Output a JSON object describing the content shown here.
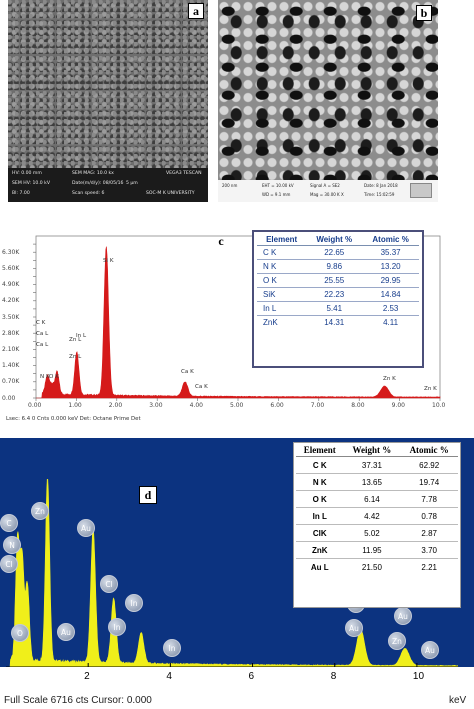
{
  "panel_a": {
    "tag": "a",
    "info": {
      "hv": "HV: 0.00 mm",
      "sem_mag": "SEM MAG: 10.0 kx",
      "vega": "VEGA3 TESCAN",
      "sem_hv": "SEM HV: 10.0 kV",
      "date": "Date(m/d/y): 08/05/16",
      "scale": "5 μm",
      "bi": "BI: 7.00",
      "scan": "Scan speed: 6",
      "uni": "SOC-M K UNIVERSITY"
    }
  },
  "panel_b": {
    "tag": "b",
    "info": {
      "scale": "200 nm",
      "eht": "EHT = 10.00 kV",
      "wd": "WD = 9.1 mm",
      "signal": "Signal A = SE2",
      "mag": "Mag = 30.00 K X",
      "date": "Date: 8 Jan 2018",
      "time": "Time: 15:02:59"
    }
  },
  "panel_c": {
    "tag": "c",
    "footer": "Lsec: 6.4  0 Cnts  0.000 keV  Det: Octane Prime Det",
    "table": {
      "headers": [
        "Element",
        "Weight %",
        "Atomic %"
      ],
      "rows": [
        [
          "C K",
          "22.65",
          "35.37"
        ],
        [
          "N K",
          "9.86",
          "13.20"
        ],
        [
          "O K",
          "25.55",
          "29.95"
        ],
        [
          "SiK",
          "22.23",
          "14.84"
        ],
        [
          "In L",
          "5.41",
          "2.53"
        ],
        [
          "ZnK",
          "14.31",
          "4.11"
        ]
      ]
    }
  },
  "panel_d": {
    "tag": "d",
    "footer": "Full Scale 6716 cts Cursor: 0.000",
    "unit": "keV",
    "table": {
      "headers": [
        "Element",
        "Weight %",
        "Atomic %"
      ],
      "rows": [
        [
          "C K",
          "37.31",
          "62.92"
        ],
        [
          "N K",
          "13.65",
          "19.74"
        ],
        [
          "O K",
          "6.14",
          "7.78"
        ],
        [
          "In L",
          "4.42",
          "0.78"
        ],
        [
          "ClK",
          "5.02",
          "2.87"
        ],
        [
          "ZnK",
          "11.95",
          "3.70"
        ],
        [
          "Au L",
          "21.50",
          "2.21"
        ]
      ]
    }
  },
  "chart_data": [
    {
      "type": "line",
      "xlim": [
        0,
        10
      ],
      "ylim": [
        0,
        7000
      ],
      "x_ticks": [
        "0.00",
        "1.00",
        "2.00",
        "3.00",
        "4.00",
        "5.00",
        "6.00",
        "7.00",
        "8.00",
        "9.00",
        "10.0"
      ],
      "y_ticks": [
        "0.00",
        "0.35K",
        "0.70K",
        "1.05K",
        "1.40K",
        "1.75K",
        "2.10K",
        "2.45K",
        "2.80K",
        "3.15K",
        "3.50K",
        "3.85K",
        "4.20K",
        "4.55K",
        "4.90K",
        "5.25K",
        "5.60K",
        "5.95K",
        "6.30K",
        "6.65K"
      ],
      "color": "#d51a1a",
      "peaks": [
        {
          "label": "C K",
          "x": 0.28,
          "y": 780
        },
        {
          "label": "N K",
          "x": 0.39,
          "y": 420
        },
        {
          "label": "O K",
          "x": 0.52,
          "y": 960
        },
        {
          "label": "Zn L",
          "x": 1.01,
          "y": 1850
        },
        {
          "label": "Si K",
          "x": 1.74,
          "y": 6400
        },
        {
          "label": "Ca K",
          "x": 3.69,
          "y": 620
        },
        {
          "label": "Zn K",
          "x": 8.63,
          "y": 470
        }
      ],
      "annotations": [
        "C K",
        "Ca L",
        "Ca L",
        "N K",
        "O K",
        "Zn L",
        "Zn L",
        "In L",
        "Si K",
        "Ca K",
        "Ca K",
        "Zn K",
        "Zn K"
      ]
    },
    {
      "type": "line",
      "xlim": [
        0,
        11
      ],
      "ylim": [
        0,
        6716
      ],
      "x_ticks": [
        "2",
        "4",
        "6",
        "8",
        "10"
      ],
      "color": "#f0ef1a",
      "peaks": [
        {
          "label": "C",
          "x": 0.28,
          "y": 3500
        },
        {
          "label": "N",
          "x": 0.39,
          "y": 3000
        },
        {
          "label": "O",
          "x": 0.52,
          "y": 2200
        },
        {
          "label": "Zn",
          "x": 1.01,
          "y": 5400
        },
        {
          "label": "Au",
          "x": 2.12,
          "y": 3900
        },
        {
          "label": "Cl",
          "x": 2.62,
          "y": 1900
        },
        {
          "label": "In",
          "x": 3.29,
          "y": 900
        },
        {
          "label": "Zn",
          "x": 8.63,
          "y": 1050
        },
        {
          "label": "Au",
          "x": 9.71,
          "y": 500
        }
      ],
      "badges": [
        "C",
        "N",
        "Cl",
        "O",
        "Zn",
        "Au",
        "Au",
        "Cl",
        "In",
        "In",
        "In",
        "Zn",
        "Au",
        "Au",
        "Zn",
        "Au"
      ]
    }
  ]
}
